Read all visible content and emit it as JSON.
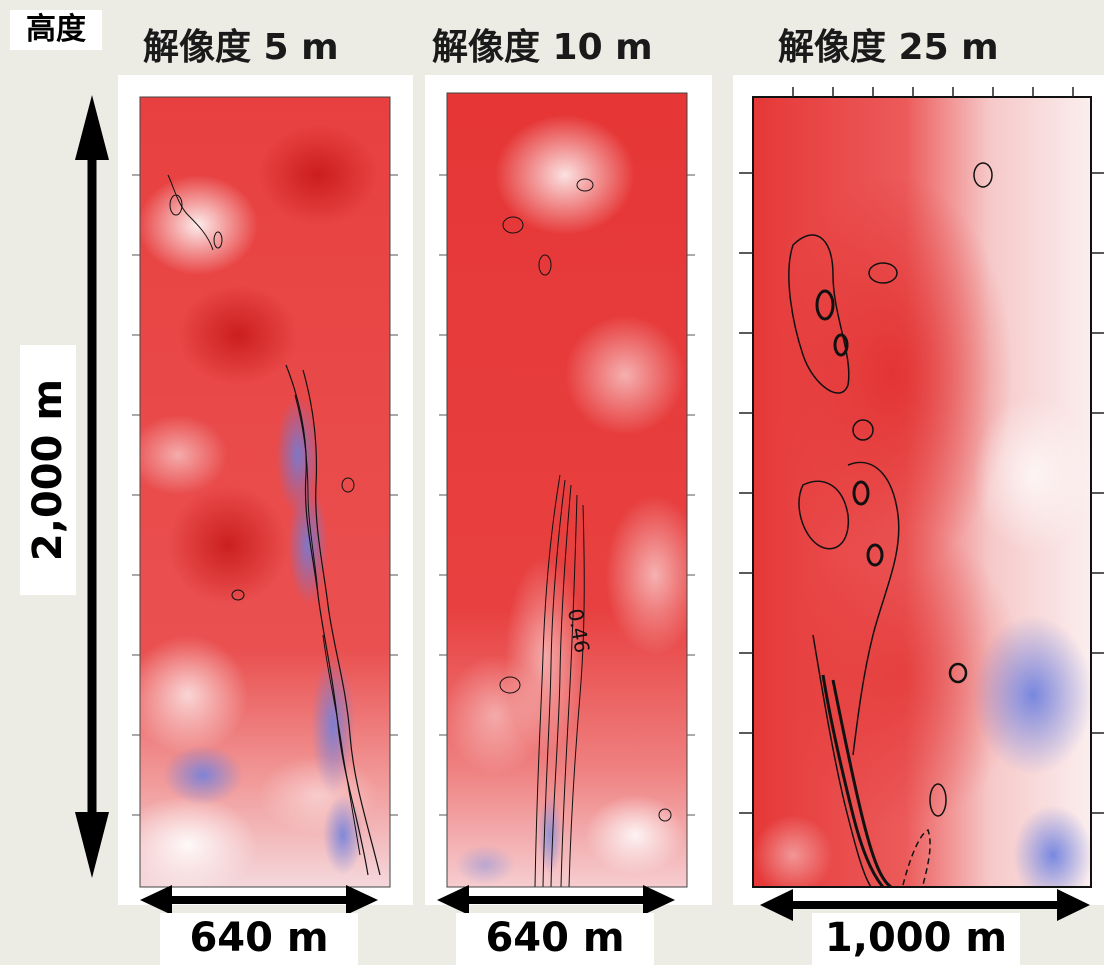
{
  "header": {
    "height_label": "高度",
    "panels": [
      {
        "title": "解像度 5 m",
        "width_label": "640 m"
      },
      {
        "title": "解像度 10 m",
        "width_label": "640 m",
        "contour_label": "0.46"
      },
      {
        "title": "解像度 25 m",
        "width_label": "1,000 m"
      }
    ]
  },
  "vertical_label": "2,000 m",
  "colors": {
    "warm": "#e53a3a",
    "cool": "#6f7fd8",
    "contour": "#111111"
  }
}
